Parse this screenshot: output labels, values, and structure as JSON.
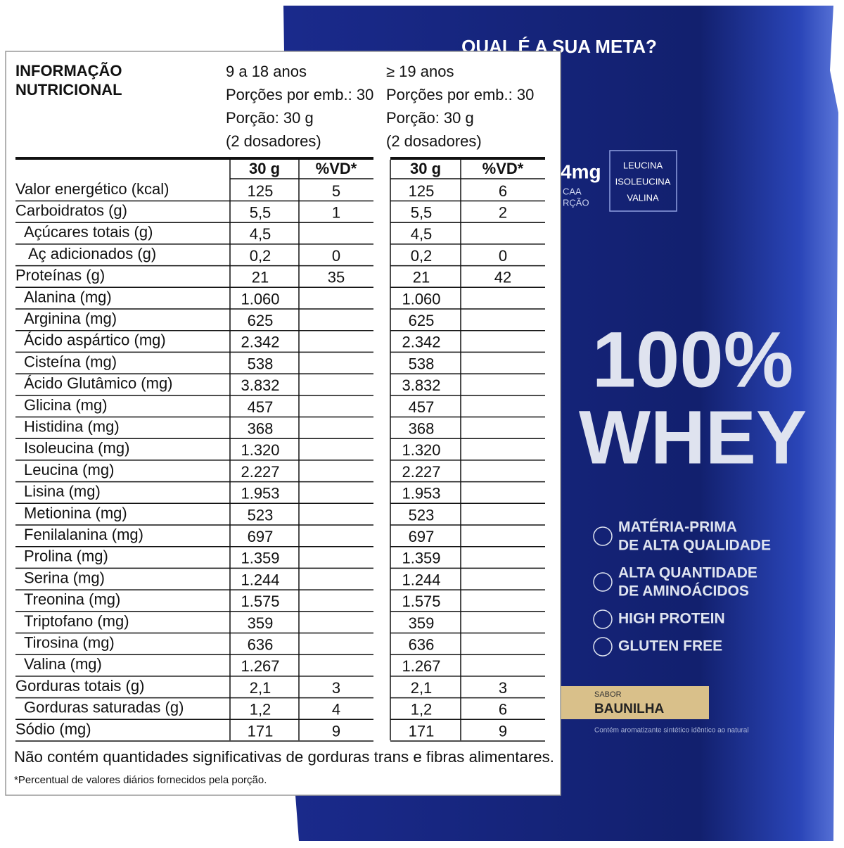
{
  "package": {
    "slogan": "QUAL É A SUA META?",
    "bcaa_value": "4mg",
    "bcaa_caption": [
      "CAA",
      "RÇÃO"
    ],
    "amino_list": [
      "LEUCINA",
      "ISOLEUCINA",
      "VALINA"
    ],
    "product": [
      "100%",
      "WHEY"
    ],
    "features": [
      [
        "MATÉRIA-PRIMA",
        "DE ALTA QUALIDADE"
      ],
      [
        "ALTA QUANTIDADE",
        "DE AMINOÁCIDOS"
      ],
      [
        "HIGH PROTEIN"
      ],
      [
        "GLUTEN FREE"
      ]
    ],
    "flavor_label": "SABOR",
    "flavor": "BAUNILHA",
    "disclaimer": "Contém aromatizante sintético idêntico ao natural"
  },
  "label": {
    "title": [
      "INFORMAÇÃO",
      "NUTRICIONAL"
    ],
    "groups": [
      {
        "lines": [
          "9 a 18 anos",
          "Porções por emb.: 30",
          "Porção: 30 g",
          "(2 dosadores)"
        ],
        "columns": [
          "30 g",
          "%VD*"
        ]
      },
      {
        "lines": [
          "≥ 19 anos",
          "Porções por emb.: 30",
          "Porção: 30 g",
          "(2 dosadores)"
        ],
        "columns": [
          "30 g",
          "%VD*"
        ]
      }
    ],
    "rows": [
      [
        "Valor energético (kcal)",
        "125",
        "5",
        "125",
        "6"
      ],
      [
        "Carboidratos (g)",
        "5,5",
        "1",
        "5,5",
        "2"
      ],
      [
        "Açúcares totais (g)",
        "4,5",
        null,
        "4,5",
        null
      ],
      [
        "Aç adicionados (g)",
        "0,2",
        "0",
        "0,2",
        "0"
      ],
      [
        "Proteínas (g)",
        "21",
        "35",
        "21",
        "42"
      ],
      [
        "Alanina (mg)",
        "1.060",
        null,
        "1.060",
        null
      ],
      [
        "Arginina (mg)",
        "625",
        null,
        "625",
        null
      ],
      [
        "Ácido aspártico (mg)",
        "2.342",
        null,
        "2.342",
        null
      ],
      [
        "Cisteína (mg)",
        "538",
        null,
        "538",
        null
      ],
      [
        "Ácido Glutâmico (mg)",
        "3.832",
        null,
        "3.832",
        null
      ],
      [
        "Glicina (mg)",
        "457",
        null,
        "457",
        null
      ],
      [
        "Histidina (mg)",
        "368",
        null,
        "368",
        null
      ],
      [
        "Isoleucina (mg)",
        "1.320",
        null,
        "1.320",
        null
      ],
      [
        "Leucina (mg)",
        "2.227",
        null,
        "2.227",
        null
      ],
      [
        "Lisina (mg)",
        "1.953",
        null,
        "1.953",
        null
      ],
      [
        "Metionina (mg)",
        "523",
        null,
        "523",
        null
      ],
      [
        "Fenilalanina (mg)",
        "697",
        null,
        "697",
        null
      ],
      [
        "Prolina (mg)",
        "1.359",
        null,
        "1.359",
        null
      ],
      [
        "Serina (mg)",
        "1.244",
        null,
        "1.244",
        null
      ],
      [
        "Treonina (mg)",
        "1.575",
        null,
        "1.575",
        null
      ],
      [
        "Triptofano (mg)",
        "359",
        null,
        "359",
        null
      ],
      [
        "Tirosina (mg)",
        "636",
        null,
        "636",
        null
      ],
      [
        "Valina (mg)",
        "1.267",
        null,
        "1.267",
        null
      ],
      [
        "Gorduras totais (g)",
        "2,1",
        "3",
        "2,1",
        "3"
      ],
      [
        "Gorduras saturadas (g)",
        "1,2",
        "4",
        "1,2",
        "6"
      ],
      [
        "Sódio (mg)",
        "171",
        "9",
        "171",
        "9"
      ]
    ],
    "note": "Não contém quantidades significativas de gorduras trans e fibras alimentares.",
    "footnote": "*Percentual de valores diários fornecidos pela porção."
  }
}
